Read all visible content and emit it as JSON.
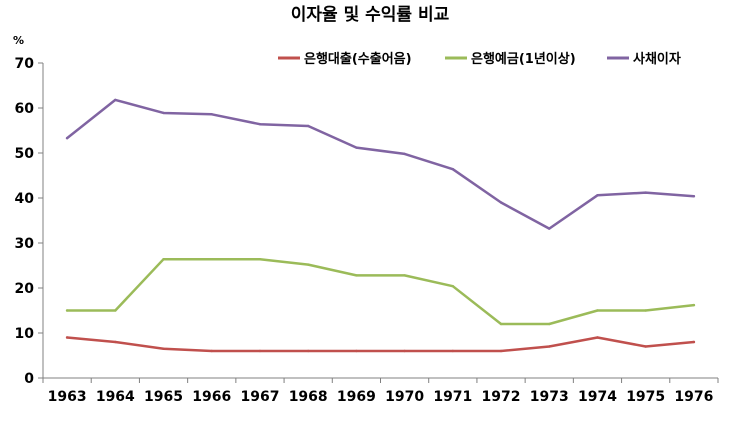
{
  "chart_data": {
    "type": "line",
    "title": "이자율 및 수익률 비교",
    "ylabel": "%",
    "xlabel": "",
    "ylim": [
      0,
      70
    ],
    "yticks": [
      0,
      10,
      20,
      30,
      40,
      50,
      60,
      70
    ],
    "grid": false,
    "legend_position": "top-right",
    "categories": [
      "1963",
      "1964",
      "1965",
      "1966",
      "1967",
      "1968",
      "1969",
      "1970",
      "1971",
      "1972",
      "1973",
      "1974",
      "1975",
      "1976"
    ],
    "series": [
      {
        "name": "은행대출(수출어음)",
        "color": "#c0504d",
        "values": [
          9,
          8,
          6.5,
          6,
          6,
          6,
          6,
          6,
          6,
          6,
          7,
          9,
          7,
          8
        ]
      },
      {
        "name": "은행예금(1년이상)",
        "color": "#9bbb59",
        "values": [
          15,
          15,
          26.4,
          26.4,
          26.4,
          25.2,
          22.8,
          22.8,
          20.4,
          12,
          12,
          15,
          15,
          16.2
        ]
      },
      {
        "name": "사채이자",
        "color": "#8064a2",
        "values": [
          53.3,
          61.8,
          58.9,
          58.6,
          56.4,
          56,
          51.2,
          49.8,
          46.4,
          39,
          33.2,
          40.6,
          41.2,
          40.4
        ]
      }
    ]
  }
}
